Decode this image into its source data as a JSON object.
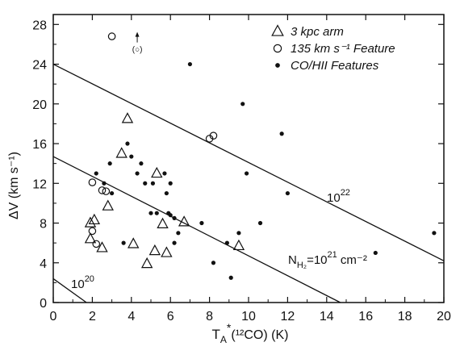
{
  "chart_data": {
    "type": "scatter",
    "title": "",
    "xlabel": {
      "base": "T",
      "sub": "A",
      "sup": "*",
      "rest": "(¹²CO) (K)"
    },
    "ylabel": "ΔV (km s⁻¹)",
    "xlim": [
      0,
      20
    ],
    "ylim": [
      0,
      29
    ],
    "xticks": [
      0,
      2,
      4,
      6,
      8,
      10,
      12,
      14,
      16,
      18,
      20
    ],
    "yticks": [
      0,
      4,
      8,
      12,
      16,
      20,
      24,
      28
    ],
    "grid": false,
    "legend_position": "top-right",
    "series": [
      {
        "name": "3 kpc arm",
        "marker": "triangle",
        "points": [
          [
            1.9,
            6.4
          ],
          [
            1.9,
            8.0
          ],
          [
            2.1,
            8.3
          ],
          [
            2.5,
            5.5
          ],
          [
            2.8,
            9.7
          ],
          [
            3.5,
            15.0
          ],
          [
            3.8,
            18.5
          ],
          [
            4.1,
            5.9
          ],
          [
            4.8,
            3.9
          ],
          [
            5.2,
            5.2
          ],
          [
            5.3,
            13.0
          ],
          [
            5.6,
            7.9
          ],
          [
            5.8,
            5.0
          ],
          [
            6.7,
            8.1
          ],
          [
            9.5,
            5.7
          ]
        ]
      },
      {
        "name": "135 km s⁻¹ Feature",
        "marker": "open-circle",
        "points": [
          [
            3.0,
            26.8
          ],
          [
            2.0,
            12.1
          ],
          [
            2.5,
            11.3
          ],
          [
            2.7,
            11.2
          ],
          [
            2.0,
            7.2
          ],
          [
            2.2,
            5.9
          ],
          [
            8.0,
            16.5
          ],
          [
            8.2,
            16.8
          ]
        ]
      },
      {
        "name": "CO/HII Features",
        "marker": "filled-circle",
        "points": [
          [
            2.2,
            13.0
          ],
          [
            2.6,
            12.0
          ],
          [
            2.9,
            14.0
          ],
          [
            3.0,
            11.0
          ],
          [
            3.6,
            6.0
          ],
          [
            3.8,
            16.0
          ],
          [
            4.0,
            14.7
          ],
          [
            4.3,
            13.0
          ],
          [
            4.5,
            14.0
          ],
          [
            4.7,
            12.0
          ],
          [
            5.0,
            9.0
          ],
          [
            5.1,
            12.0
          ],
          [
            5.3,
            9.0
          ],
          [
            5.7,
            13.0
          ],
          [
            5.8,
            11.0
          ],
          [
            5.9,
            9.0
          ],
          [
            6.0,
            12.0
          ],
          [
            6.2,
            8.5
          ],
          [
            6.2,
            6.0
          ],
          [
            6.4,
            7.0
          ],
          [
            6.0,
            8.8
          ],
          [
            7.0,
            24.0
          ],
          [
            7.6,
            8.0
          ],
          [
            8.2,
            4.0
          ],
          [
            8.9,
            6.0
          ],
          [
            9.1,
            2.5
          ],
          [
            9.5,
            7.0
          ],
          [
            9.7,
            20.0
          ],
          [
            9.9,
            13.0
          ],
          [
            10.6,
            8.0
          ],
          [
            11.7,
            17.0
          ],
          [
            12.0,
            11.0
          ],
          [
            16.5,
            5.0
          ],
          [
            19.5,
            7.0
          ]
        ]
      }
    ],
    "lines": [
      {
        "label": "10",
        "label_sup": "20",
        "x1": 0,
        "y1": 2.4,
        "x2": 1.7,
        "y2": 0
      },
      {
        "label": "N",
        "label_sub": "H₂",
        "label_rest": "=10",
        "label_sup": "21",
        "label_tail": " cm⁻²",
        "x1": 0,
        "y1": 14.7,
        "x2": 14.7,
        "y2": 0
      },
      {
        "label": "10",
        "label_sup": "22",
        "x1": 0,
        "y1": 24.0,
        "x2": 20,
        "y2": 4.2
      }
    ],
    "annotations": [
      {
        "text": "(○)",
        "x": 4.3,
        "y": 25.7,
        "arrow_up": true
      }
    ]
  }
}
